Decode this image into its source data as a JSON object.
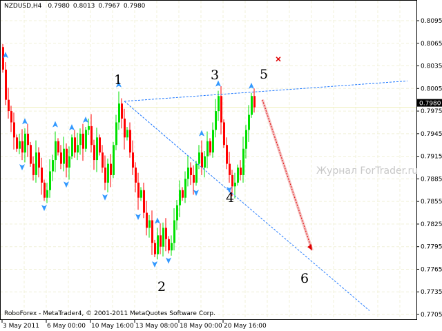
{
  "chart_data": {
    "type": "candlestick",
    "title": "NZDUSD,H4",
    "ohlc_readout": [
      "0.7980",
      "0.8013",
      "0.7967",
      "0.7980"
    ],
    "footer": "RoboForex - MetaTrader4, © 2001-2011 MetaQuotes Software Corp.",
    "watermark": "Журнал ForTrader.ru",
    "current_price": "0.7980",
    "ylim": [
      0.7695,
      0.8122
    ],
    "y_ticks": [
      "0.8095",
      "0.8065",
      "0.8035",
      "0.8005",
      "0.7975",
      "0.7945",
      "0.7915",
      "0.7885",
      "0.7855",
      "0.7825",
      "0.7795",
      "0.7765",
      "0.7735",
      "0.7705"
    ],
    "x_ticks": [
      {
        "label": "3 May 2011",
        "index": 0
      },
      {
        "label": "6 May 00:00",
        "index": 16
      },
      {
        "label": "10 May 16:00",
        "index": 32
      },
      {
        "label": "13 May 08:00",
        "index": 48
      },
      {
        "label": "18 May 00:00",
        "index": 64
      },
      {
        "label": "20 May 16:00",
        "index": 80
      }
    ],
    "grid": true,
    "colors": {
      "bull": "#00e000",
      "bear": "#ff0000",
      "fractal": "#3399ff",
      "trendline": "#1e78ff",
      "arrow": "#e00000",
      "price_line": "#f0f0c0",
      "grid": "#f0f0d8"
    },
    "open": 0.806,
    "closes": [
      0.803,
      0.799,
      0.7975,
      0.796,
      0.794,
      0.7925,
      0.7935,
      0.792,
      0.7945,
      0.793,
      0.7905,
      0.789,
      0.792,
      0.79,
      0.788,
      0.786,
      0.787,
      0.7895,
      0.791,
      0.7935,
      0.792,
      0.7905,
      0.7925,
      0.79,
      0.7915,
      0.794,
      0.792,
      0.793,
      0.7945,
      0.7925,
      0.795,
      0.7955,
      0.793,
      0.791,
      0.794,
      0.792,
      0.79,
      0.788,
      0.7905,
      0.789,
      0.793,
      0.796,
      0.7985,
      0.7965,
      0.794,
      0.795,
      0.792,
      0.79,
      0.788,
      0.786,
      0.787,
      0.784,
      0.782,
      0.783,
      0.78,
      0.7785,
      0.781,
      0.7795,
      0.782,
      0.7805,
      0.779,
      0.78,
      0.783,
      0.785,
      0.787,
      0.786,
      0.7885,
      0.79,
      0.789,
      0.788,
      0.7905,
      0.792,
      0.79,
      0.7915,
      0.7935,
      0.792,
      0.795,
      0.7975,
      0.7995,
      0.796,
      0.793,
      0.7905,
      0.789,
      0.7875,
      0.788,
      0.79,
      0.789,
      0.7925,
      0.795,
      0.797,
      0.7995,
      0.798
    ],
    "fractals_up": [
      1,
      8,
      19,
      25,
      30,
      42,
      56,
      72,
      78,
      90
    ],
    "fractals_down": [
      7,
      15,
      23,
      37,
      49,
      55,
      60,
      70,
      82
    ],
    "lines": [
      {
        "name": "upper-trendline",
        "from": [
          44,
          0.7988
        ],
        "to": [
          146.5,
          0.8015
        ],
        "style": "dashed"
      },
      {
        "name": "lower-trendline",
        "from": [
          44,
          0.7988
        ],
        "to": [
          132.75,
          0.771
        ],
        "style": "dashed"
      },
      {
        "name": "forecast-arrow",
        "from": [
          94,
          0.799
        ],
        "to": [
          112,
          0.779
        ],
        "style": "dotted-arrow"
      }
    ],
    "cross_marker": [
      99.75,
      0.8044
    ],
    "wave_labels": [
      "1",
      "2",
      "3",
      "4",
      "5",
      "6"
    ]
  }
}
